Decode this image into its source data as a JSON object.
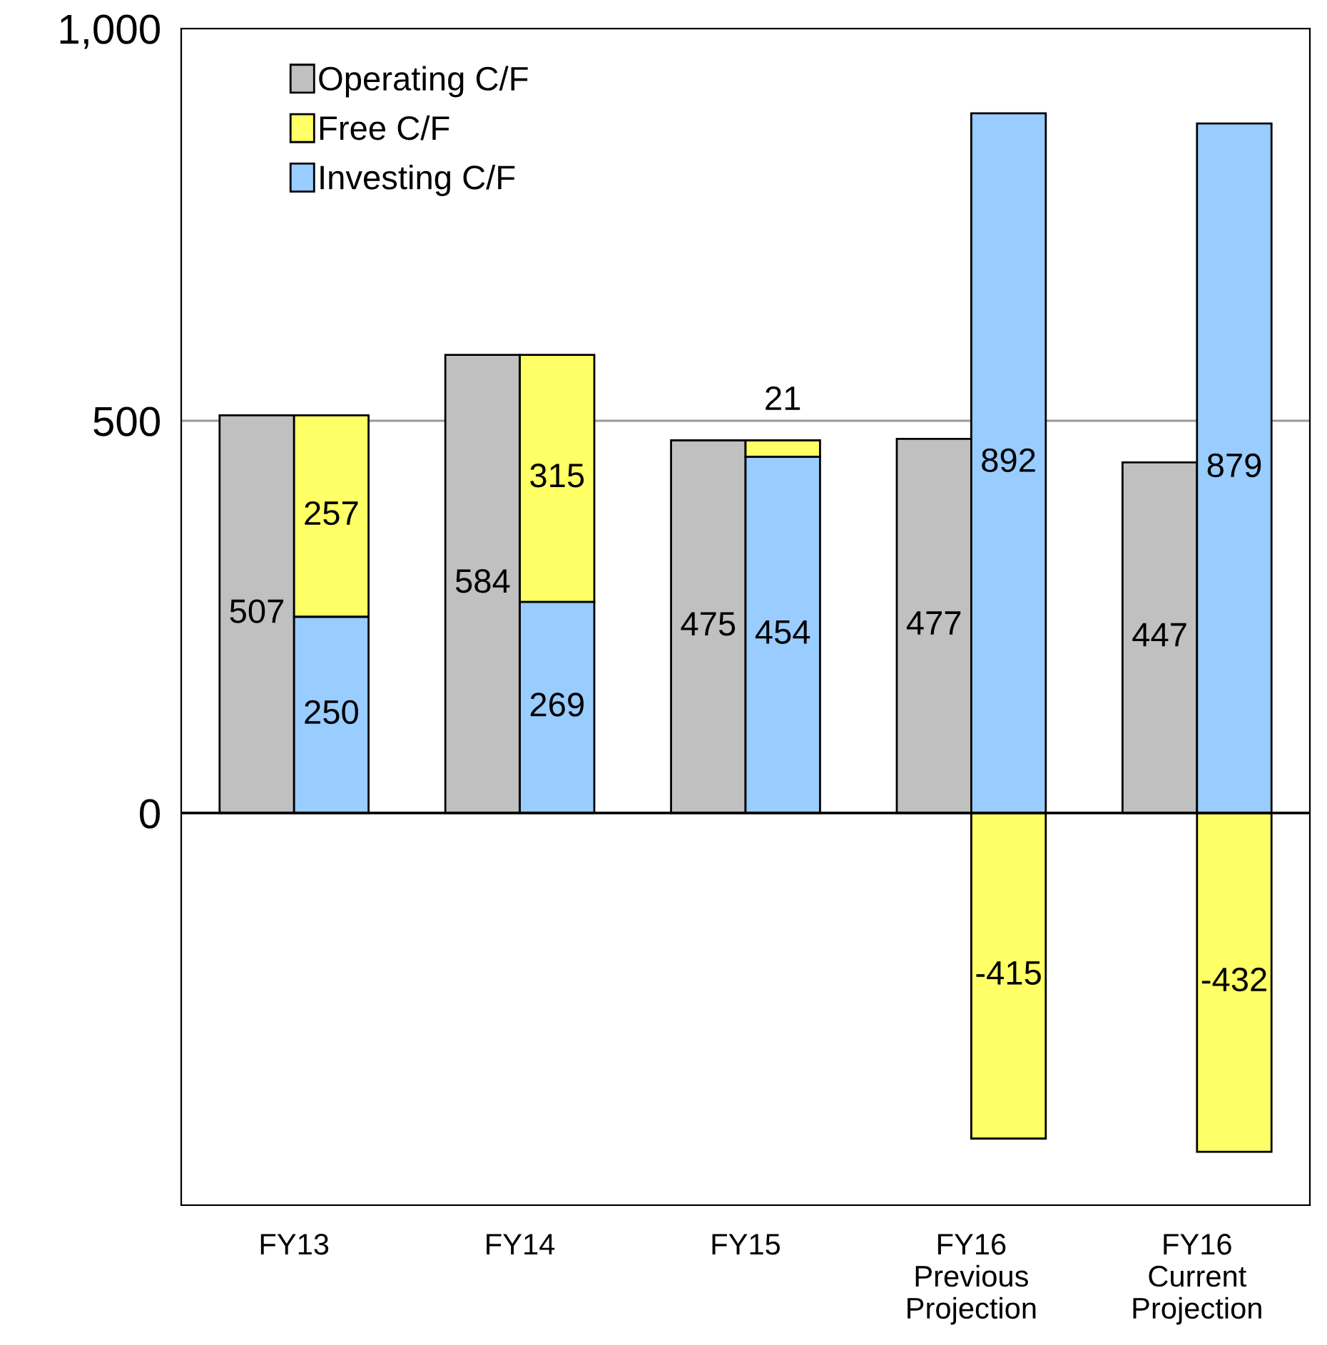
{
  "chart_data": {
    "type": "bar",
    "categories": [
      "FY13",
      "FY14",
      "FY15",
      "FY16\nPrevious\nProjection",
      "FY16\nCurrent\nProjection"
    ],
    "series": [
      {
        "name": "Operating C/F",
        "color": "#c0c0c0",
        "values": [
          507,
          584,
          475,
          477,
          447
        ]
      },
      {
        "name": "Free C/F",
        "color": "#ffff66",
        "values": [
          257,
          315,
          21,
          -415,
          -432
        ],
        "base": [
          250,
          269,
          454,
          0,
          0
        ]
      },
      {
        "name": "Investing C/F",
        "color": "#99ccff",
        "values": [
          250,
          269,
          454,
          892,
          879
        ]
      }
    ],
    "ylim": [
      -500,
      1000
    ],
    "yticks": [
      {
        "value": -500,
        "label": null
      },
      0,
      {
        "value": 500,
        "label": "500"
      },
      {
        "value": 1000,
        "label": "1,000"
      }
    ],
    "grid": "y",
    "legend": "top left",
    "data_labels": true,
    "ref_lines": [
      {
        "axis": "y",
        "value": 0,
        "color": "#000000"
      }
    ]
  }
}
